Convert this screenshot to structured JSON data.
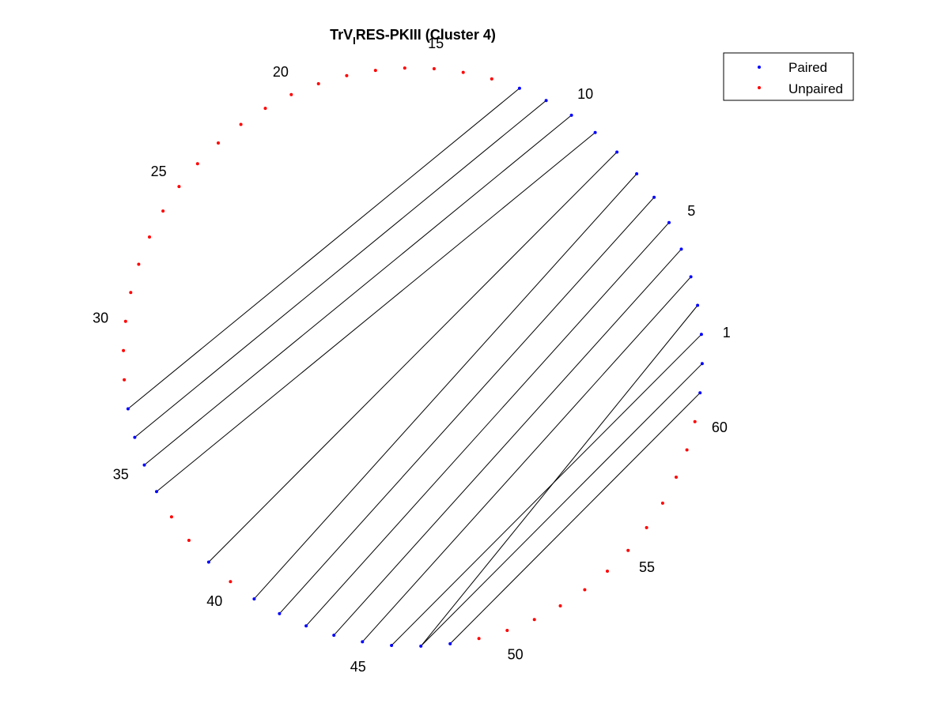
{
  "chart_data": {
    "type": "scatter",
    "title": {
      "main": "TrV",
      "subscript": "I",
      "rest": "RES-PKIII (Cluster 4)"
    },
    "n_positions": 62,
    "pairs": [
      [
        1,
        46
      ],
      [
        2,
        47
      ],
      [
        3,
        45
      ],
      [
        4,
        44
      ],
      [
        5,
        43
      ],
      [
        6,
        42
      ],
      [
        7,
        41
      ],
      [
        8,
        39
      ],
      [
        9,
        36
      ],
      [
        10,
        35
      ],
      [
        11,
        34
      ],
      [
        12,
        33
      ],
      [
        61,
        48
      ],
      [
        62,
        47
      ]
    ],
    "position_labels": [
      "1",
      "5",
      "10",
      "15",
      "20",
      "25",
      "30",
      "35",
      "40",
      "45",
      "50",
      "55",
      "60"
    ],
    "labeled_positions": [
      1,
      5,
      10,
      15,
      20,
      25,
      30,
      35,
      40,
      45,
      50,
      55,
      60
    ],
    "legend": {
      "placement": "top-right",
      "entries": [
        {
          "label": "Paired",
          "color": "#0000ff"
        },
        {
          "label": "Unpaired",
          "color": "#ff0000"
        }
      ]
    },
    "colors": {
      "paired": "#0000ff",
      "unpaired": "#ff0000",
      "arc": "#000000"
    }
  }
}
